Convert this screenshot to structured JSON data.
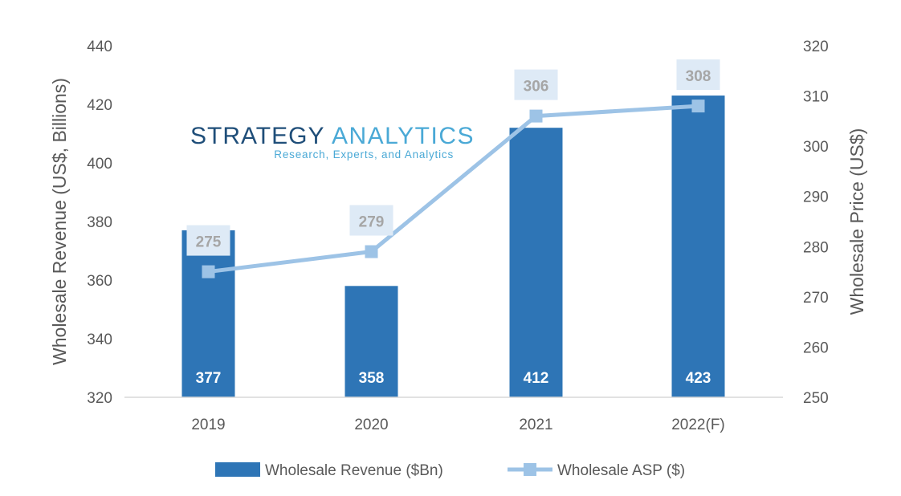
{
  "chart_data": {
    "type": "bar",
    "categories": [
      "2019",
      "2020",
      "2021",
      "2022(F)"
    ],
    "series": [
      {
        "name": "Wholesale Revenue ($Bn)",
        "type": "bar",
        "axis": "left",
        "values": [
          377,
          358,
          412,
          423
        ],
        "color": "#2E75B6"
      },
      {
        "name": "Wholesale ASP ($)",
        "type": "line",
        "axis": "right",
        "values": [
          275,
          279,
          306,
          308
        ],
        "color": "#9DC3E6"
      }
    ],
    "ylabel": "Wholesale Revenue (US$, Billions)",
    "y2label": "Wholesale Price (US$)",
    "ylim": [
      320,
      440
    ],
    "y2lim": [
      250,
      320
    ],
    "yticks": [
      "320",
      "340",
      "360",
      "380",
      "400",
      "420",
      "440"
    ],
    "y2ticks": [
      "250",
      "260",
      "270",
      "280",
      "290",
      "300",
      "310",
      "320"
    ],
    "grid": false,
    "legend": "bottom"
  },
  "logo": {
    "name_dark": "STRATEGY",
    "name_light": "ANALYTICS",
    "tagline": "Research, Experts, and Analytics"
  }
}
